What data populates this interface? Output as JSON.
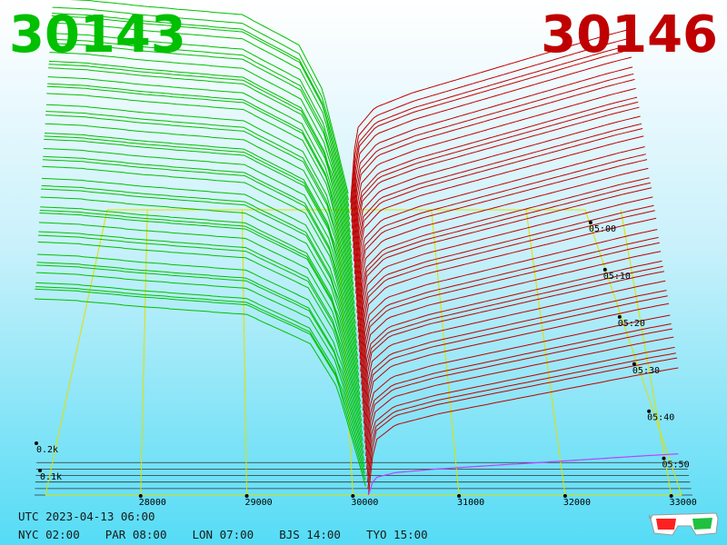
{
  "header": {
    "bid_price": "30143",
    "ask_price": "30146"
  },
  "colors": {
    "bid": "#00c000",
    "ask": "#c00000",
    "grid": "#e0e000",
    "last_ask": "#c040ff",
    "axis": "#000000"
  },
  "footer": {
    "utc": "UTC 2023-04-13 06:00",
    "zones": [
      {
        "label": "NYC 02:00"
      },
      {
        "label": "PAR 08:00"
      },
      {
        "label": "LON 07:00"
      },
      {
        "label": "BJS 14:00"
      },
      {
        "label": "TYO 15:00"
      }
    ]
  },
  "icons": {
    "glasses": "3d-glasses-icon"
  },
  "chart_data": {
    "type": "area",
    "view": "3d-order-book-depth-history",
    "x_axis": {
      "range": [
        27000,
        33200
      ],
      "ticks": [
        "28000",
        "29000",
        "30000",
        "31000",
        "32000",
        "33000"
      ],
      "tick_values": [
        28000,
        29000,
        30000,
        31000,
        32000,
        33000
      ]
    },
    "depth_axis": {
      "ticks": [
        "0.1k",
        "0.2k"
      ],
      "tick_values": [
        100,
        200
      ]
    },
    "time_axis": {
      "ticks": [
        "05:00",
        "05:10",
        "05:20",
        "05:30",
        "05:40",
        "05:50"
      ],
      "tick_values_min": [
        0,
        10,
        20,
        30,
        40,
        50
      ]
    },
    "mid_price": 30145,
    "series": [
      {
        "name": "bids",
        "x": [
          27000,
          27400,
          28000,
          28500,
          29000,
          29300,
          29600,
          29850,
          30000,
          30143
        ],
        "y": [
          540,
          535,
          520,
          510,
          500,
          460,
          420,
          300,
          150,
          0
        ]
      },
      {
        "name": "asks",
        "x": [
          30146,
          30200,
          30400,
          30800,
          31200,
          31600,
          32000,
          32400,
          32800,
          33100
        ],
        "y": [
          0,
          190,
          250,
          290,
          320,
          350,
          380,
          410,
          440,
          460
        ]
      }
    ],
    "grid": true
  }
}
